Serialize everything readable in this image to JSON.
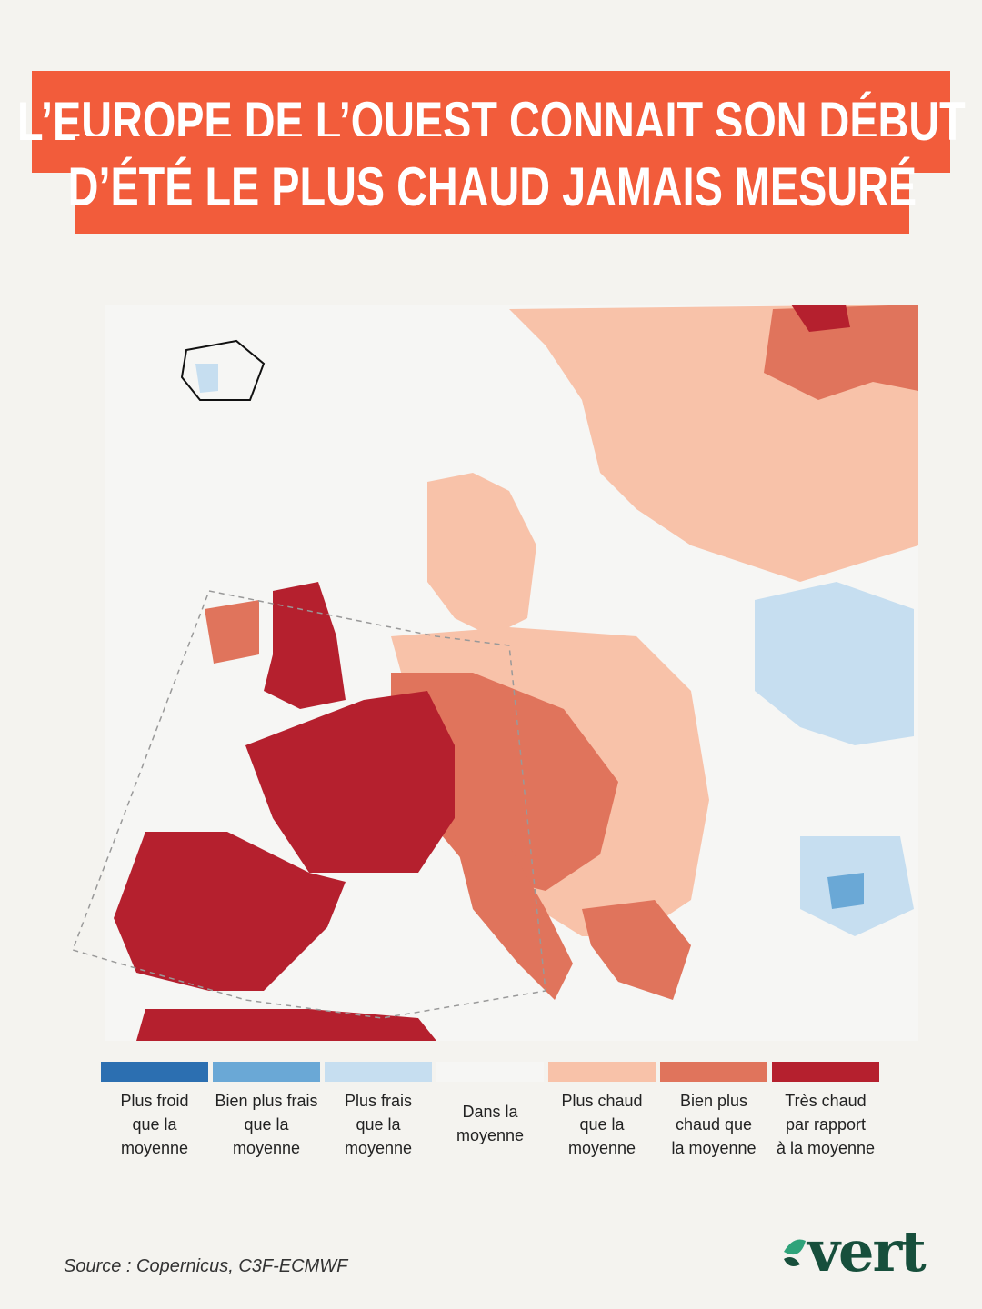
{
  "header": {
    "title_lines": [
      "L’EUROPE DE L’OUEST CONNAIT SON DÉBUT",
      "D’ÉTÉ LE PLUS CHAUD JAMAIS MESURÉ"
    ]
  },
  "legend": [
    {
      "color": "#2c6fb1",
      "lines": [
        "Plus froid",
        "que la",
        "moyenne"
      ]
    },
    {
      "color": "#6aa8d6",
      "lines": [
        "Bien plus frais",
        "que la",
        "moyenne"
      ]
    },
    {
      "color": "#c6def0",
      "lines": [
        "Plus frais",
        "que la",
        "moyenne"
      ]
    },
    {
      "color": "#f6f6f4",
      "lines": [
        "Dans la",
        "moyenne"
      ]
    },
    {
      "color": "#f8c2a9",
      "lines": [
        "Plus chaud",
        "que la",
        "moyenne"
      ]
    },
    {
      "color": "#e0745c",
      "lines": [
        "Bien plus",
        "chaud que",
        "la moyenne"
      ]
    },
    {
      "color": "#b5202e",
      "lines": [
        "Très chaud",
        "par rapport",
        "à la moyenne"
      ]
    }
  ],
  "footer": {
    "source": "Source : Copernicus, C3F-ECMWF",
    "logo": "vert"
  }
}
